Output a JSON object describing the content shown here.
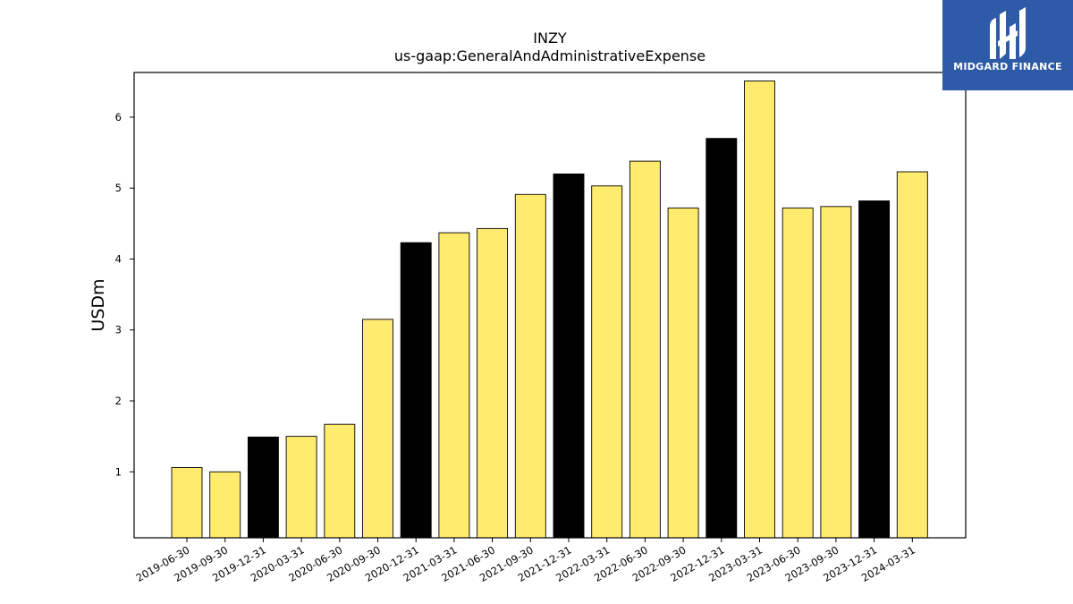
{
  "chart_data": {
    "type": "bar",
    "title": "INZY",
    "subtitle": "us-gaap:GeneralAndAdministrativeExpense",
    "xlabel": "",
    "ylabel": "USDm",
    "ylim": [
      0.07,
      6.63
    ],
    "yticks": [
      "1",
      "2",
      "3",
      "4",
      "5",
      "6"
    ],
    "grid": false,
    "legend": "none",
    "categories": [
      "2019-06-30",
      "2019-09-30",
      "2019-12-31",
      "2020-03-31",
      "2020-06-30",
      "2020-09-30",
      "2020-12-31",
      "2021-03-31",
      "2021-06-30",
      "2021-09-30",
      "2021-12-31",
      "2022-03-31",
      "2022-06-30",
      "2022-09-30",
      "2022-12-31",
      "2023-03-31",
      "2023-06-30",
      "2023-09-30",
      "2023-12-31",
      "2024-03-31"
    ],
    "values": [
      1.06,
      1.0,
      1.49,
      1.5,
      1.67,
      3.15,
      4.23,
      4.37,
      4.43,
      4.91,
      5.2,
      5.03,
      5.38,
      4.72,
      5.7,
      6.51,
      4.72,
      4.74,
      4.82,
      5.23
    ],
    "bar_colors": [
      "#ffec6e",
      "#ffec6e",
      "#000000",
      "#ffec6e",
      "#ffec6e",
      "#ffec6e",
      "#000000",
      "#ffec6e",
      "#ffec6e",
      "#ffec6e",
      "#000000",
      "#ffec6e",
      "#ffec6e",
      "#ffec6e",
      "#000000",
      "#ffec6e",
      "#ffec6e",
      "#ffec6e",
      "#000000",
      "#ffec6e"
    ]
  },
  "logo": {
    "text": "MIDGARD FINANCE",
    "background": "#2e5ba8"
  }
}
